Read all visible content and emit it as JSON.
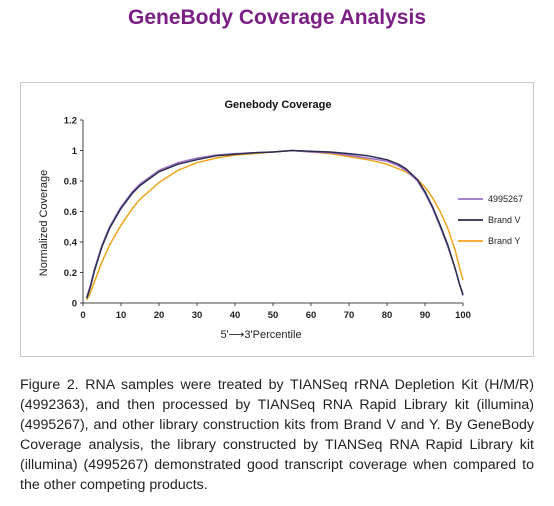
{
  "page": {
    "title": "GeneBody Coverage Analysis",
    "caption": "Figure 2. RNA samples were treated by TIANSeq rRNA Depletion Kit (H/M/R) (4992363), and then processed by TIANSeq RNA Rapid Library kit (illumina) (4995267), and other library construction kits from Brand V and Y. By GeneBody Coverage analysis, the library constructed by TIANSeq RNA Rapid Library kit (illumina) (4995267) demonstrated good transcript coverage when compared to the other competing products."
  },
  "chart_data": {
    "type": "line",
    "title": "Genebody Coverage",
    "xlabel": "5'⟶3'Percentile",
    "ylabel": "Normalized Coverage",
    "xlim": [
      0,
      100
    ],
    "ylim": [
      0,
      1.2
    ],
    "x_ticks": [
      "0",
      "10",
      "20",
      "30",
      "40",
      "50",
      "60",
      "70",
      "80",
      "90",
      "100"
    ],
    "y_ticks": [
      "0",
      "0.2",
      "0.4",
      "0.6",
      "0.8",
      "1",
      "1.2"
    ],
    "grid": false,
    "legend_position": "right",
    "x": [
      1,
      2,
      3,
      5,
      7,
      10,
      13,
      15,
      20,
      25,
      30,
      35,
      40,
      45,
      50,
      55,
      60,
      65,
      70,
      75,
      80,
      83,
      85,
      88,
      90,
      92,
      94,
      96,
      98,
      99,
      100
    ],
    "series": [
      {
        "name": "4995267",
        "color": "#9b6fc8",
        "values": [
          0.04,
          0.12,
          0.22,
          0.38,
          0.5,
          0.63,
          0.73,
          0.78,
          0.87,
          0.92,
          0.95,
          0.97,
          0.98,
          0.985,
          0.99,
          1.0,
          0.99,
          0.985,
          0.97,
          0.95,
          0.93,
          0.9,
          0.87,
          0.8,
          0.72,
          0.62,
          0.5,
          0.37,
          0.22,
          0.13,
          0.06
        ]
      },
      {
        "name": "Brand V",
        "color": "#2c2c4e",
        "values": [
          0.03,
          0.11,
          0.21,
          0.37,
          0.49,
          0.62,
          0.72,
          0.77,
          0.86,
          0.91,
          0.94,
          0.965,
          0.975,
          0.985,
          0.99,
          1.0,
          0.995,
          0.99,
          0.98,
          0.965,
          0.94,
          0.91,
          0.88,
          0.81,
          0.73,
          0.63,
          0.51,
          0.38,
          0.22,
          0.13,
          0.05
        ]
      },
      {
        "name": "Brand Y",
        "color": "#f0a21a",
        "values": [
          0.02,
          0.07,
          0.14,
          0.27,
          0.38,
          0.51,
          0.62,
          0.68,
          0.79,
          0.87,
          0.92,
          0.95,
          0.97,
          0.98,
          0.99,
          1.0,
          0.99,
          0.98,
          0.96,
          0.94,
          0.91,
          0.88,
          0.86,
          0.81,
          0.76,
          0.69,
          0.6,
          0.49,
          0.34,
          0.24,
          0.15
        ]
      }
    ]
  }
}
